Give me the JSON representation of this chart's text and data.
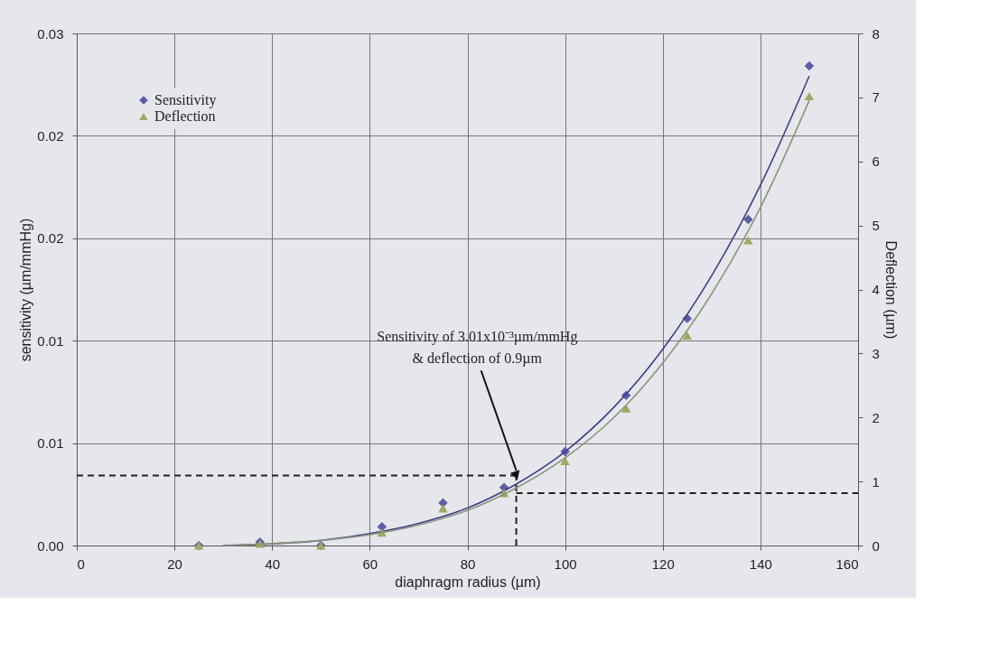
{
  "chart_data": {
    "type": "scatter",
    "xlabel": "diaphragm radius (µm)",
    "ylabel": "sensitivity (µm/mmHg)",
    "y2label": "Deflection (µm)",
    "xlim": [
      0,
      160
    ],
    "xticks": [
      0,
      20,
      40,
      60,
      80,
      100,
      120,
      140,
      160
    ],
    "ylim": [
      0,
      0.03
    ],
    "yticks": [
      {
        "value": 0,
        "label": "0.00"
      },
      {
        "value": 0.006,
        "label": "0.01"
      },
      {
        "value": 0.012,
        "label": "0.01"
      },
      {
        "value": 0.018,
        "label": "0.02"
      },
      {
        "value": 0.024,
        "label": "0.02"
      },
      {
        "value": 0.03,
        "label": "0.03"
      }
    ],
    "y2lim": [
      0,
      8
    ],
    "y2ticks": [
      0,
      1,
      2,
      3,
      4,
      5,
      6,
      7,
      8
    ],
    "grid": true,
    "legend": "top left",
    "series": [
      {
        "name": "Sensitivity",
        "marker": "diamond",
        "color": "#5b5ea6",
        "x": [
          25,
          37.5,
          50,
          62.5,
          75,
          87.5,
          100,
          112.5,
          125,
          137.5,
          150
        ],
        "values": [
          0,
          0.0002,
          0,
          0.0011,
          0.0025,
          0.0034,
          0.0055,
          0.0088,
          0.0133,
          0.0191,
          0.0281
        ]
      },
      {
        "name": "Deflection",
        "marker": "triangle",
        "color": "#9bab5e",
        "axis": "y2",
        "x": [
          25,
          37.5,
          50,
          62.5,
          75,
          87.5,
          100,
          112.5,
          125,
          137.5,
          150
        ],
        "values": [
          0,
          0.03,
          0,
          0.2,
          0.58,
          0.82,
          1.32,
          2.14,
          3.28,
          4.77,
          7.02
        ]
      },
      {
        "type": "line",
        "color": "#3c3f86",
        "x": [
          30,
          40,
          50,
          60,
          70,
          80,
          90,
          100,
          110,
          120,
          130,
          140,
          150
        ],
        "values": [
          0,
          0.0001,
          0.0003,
          0.0007,
          0.0013,
          0.0022,
          0.0036,
          0.0055,
          0.0081,
          0.0115,
          0.0158,
          0.0211,
          0.0275
        ]
      },
      {
        "type": "line",
        "color": "#8a957a",
        "axis": "y2",
        "x": [
          30,
          40,
          50,
          60,
          70,
          80,
          90,
          100,
          110,
          120,
          130,
          140,
          150
        ],
        "values": [
          0,
          0.03,
          0.08,
          0.17,
          0.32,
          0.55,
          0.9,
          1.37,
          2.0,
          2.85,
          3.93,
          5.28,
          6.95
        ]
      }
    ],
    "ref_lines": [
      {
        "axis": "x",
        "value": 90,
        "line_style": "dashed",
        "color": "#222222"
      },
      {
        "axis": "y",
        "value": 0.0041,
        "line_style": "dashed",
        "color": "#222222"
      },
      {
        "axis": "y2",
        "value": 0.82,
        "line_style": "dashed",
        "color": "#222222"
      }
    ],
    "annotations": [
      {
        "text": "Sensitivity of 3.01x10⁻³µm/mmHg\n& deflection of 0.9µm",
        "x": 90,
        "y": 0.0041
      }
    ]
  }
}
